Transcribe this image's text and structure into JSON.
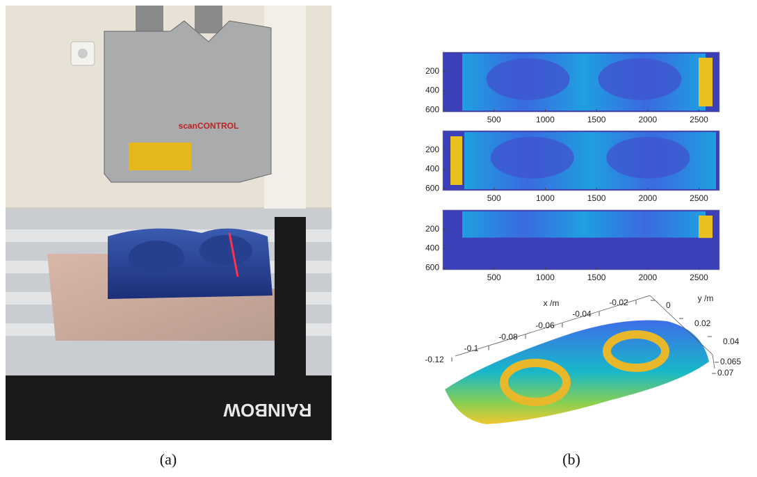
{
  "figure": {
    "panel_a": {
      "label": "(a)",
      "photo_texts": {
        "sensor": "scanCONTROL",
        "ruler": "RAINBOW"
      }
    },
    "panel_b": {
      "label": "(b)",
      "heatmaps": [
        {
          "xlim": [
            0,
            2700
          ],
          "ylim": [
            0,
            620
          ],
          "xticks": [
            500,
            1000,
            1500,
            2000,
            2500
          ],
          "yticks": [
            200,
            400,
            600
          ]
        },
        {
          "xlim": [
            0,
            2700
          ],
          "ylim": [
            0,
            620
          ],
          "xticks": [
            500,
            1000,
            1500,
            2000,
            2500
          ],
          "yticks": [
            200,
            400,
            600
          ]
        },
        {
          "xlim": [
            0,
            2700
          ],
          "ylim": [
            0,
            620
          ],
          "xticks": [
            500,
            1000,
            1500,
            2000,
            2500
          ],
          "yticks": [
            200,
            400,
            600
          ]
        }
      ],
      "surface": {
        "x_label": "x /m",
        "y_label": "y /m",
        "xticks": [
          -0.12,
          -0.1,
          -0.08,
          -0.06,
          -0.04,
          -0.02
        ],
        "yticks": [
          0,
          0.02,
          0.04
        ],
        "zticks": [
          0.065,
          0.07
        ]
      }
    }
  }
}
